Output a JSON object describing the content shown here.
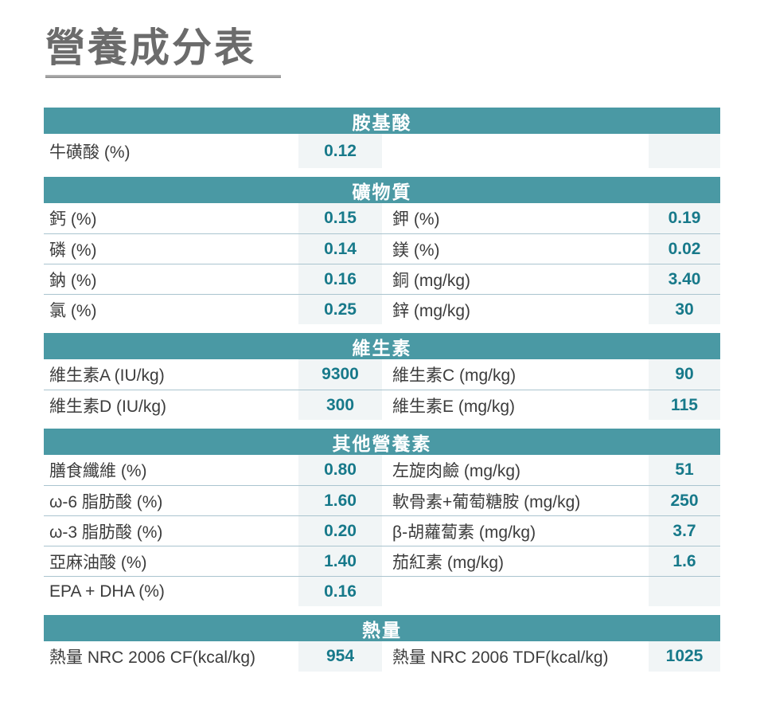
{
  "title": "營養成分表",
  "colors": {
    "section_header_bg": "#4a99a4",
    "section_header_text": "#ffffff",
    "label_text": "#3c3c3c",
    "value_text": "#17798a",
    "value_cell_bg": "#f1f5f6",
    "row_divider": "#aac4cf",
    "title_text": "#6b6b6b",
    "title_underline": "#9c9c9c"
  },
  "sections": [
    {
      "header": "胺基酸",
      "rows": [
        {
          "left_label": "牛磺酸 (%)",
          "left_value": "0.12",
          "right_label": "",
          "right_value": ""
        }
      ]
    },
    {
      "header": "礦物質",
      "rows": [
        {
          "left_label": "鈣 (%)",
          "left_value": "0.15",
          "right_label": "鉀 (%)",
          "right_value": "0.19"
        },
        {
          "left_label": "磷 (%)",
          "left_value": "0.14",
          "right_label": "鎂 (%)",
          "right_value": "0.02"
        },
        {
          "left_label": "鈉 (%)",
          "left_value": "0.16",
          "right_label": "銅 (mg/kg)",
          "right_value": "3.40"
        },
        {
          "left_label": "氯 (%)",
          "left_value": "0.25",
          "right_label": "鋅 (mg/kg)",
          "right_value": "30"
        }
      ]
    },
    {
      "header": "維生素",
      "rows": [
        {
          "left_label": "維生素A (IU/kg)",
          "left_value": "9300",
          "right_label": "維生素C (mg/kg)",
          "right_value": "90"
        },
        {
          "left_label": "維生素D (IU/kg)",
          "left_value": "300",
          "right_label": "維生素E (mg/kg)",
          "right_value": "115"
        }
      ]
    },
    {
      "header": "其他營養素",
      "rows": [
        {
          "left_label": "膳食纖維 (%)",
          "left_value": "0.80",
          "right_label": "左旋肉鹼 (mg/kg)",
          "right_value": "51"
        },
        {
          "left_label": "ω-6 脂肪酸 (%)",
          "left_value": "1.60",
          "right_label": "軟骨素+葡萄糖胺 (mg/kg)",
          "right_value": "250"
        },
        {
          "left_label": "ω-3 脂肪酸 (%)",
          "left_value": "0.20",
          "right_label": "β-胡蘿蔔素 (mg/kg)",
          "right_value": "3.7"
        },
        {
          "left_label": "亞麻油酸 (%)",
          "left_value": "1.40",
          "right_label": "茄紅素 (mg/kg)",
          "right_value": "1.6"
        },
        {
          "left_label": "EPA + DHA (%)",
          "left_value": "0.16",
          "right_label": "",
          "right_value": ""
        }
      ]
    },
    {
      "header": "熱量",
      "rows": [
        {
          "left_label": "熱量 NRC 2006 CF(kcal/kg)",
          "left_value": "954",
          "right_label": "熱量 NRC 2006 TDF(kcal/kg)",
          "right_value": "1025"
        }
      ]
    }
  ]
}
